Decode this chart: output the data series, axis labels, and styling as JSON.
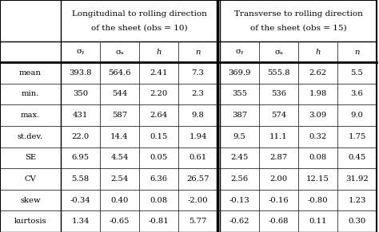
{
  "col_headers_long": [
    "Longitudinal to rolling direction",
    "of the sheet (obs = 10)"
  ],
  "col_headers_trans": [
    "Transverse to rolling direction",
    "of the sheet (obs = 15)"
  ],
  "row_labels": [
    "mean",
    "min.",
    "max.",
    "st.dev.",
    "SE",
    "CV",
    "skew",
    "kurtosis"
  ],
  "data": [
    [
      "393.8",
      "564.6",
      "2.41",
      "7.3",
      "369.9",
      "555.8",
      "2.62",
      "5.5"
    ],
    [
      "350",
      "544",
      "2.20",
      "2.3",
      "355",
      "536",
      "1.98",
      "3.6"
    ],
    [
      "431",
      "587",
      "2.64",
      "9.8",
      "387",
      "574",
      "3.09",
      "9.0"
    ],
    [
      "22.0",
      "14.4",
      "0.15",
      "1.94",
      "9.5",
      "11.1",
      "0.32",
      "1.75"
    ],
    [
      "6.95",
      "4.54",
      "0.05",
      "0.61",
      "2.45",
      "2.87",
      "0.08",
      "0.45"
    ],
    [
      "5.58",
      "2.54",
      "6.36",
      "26.57",
      "2.56",
      "2.00",
      "12.15",
      "31.92"
    ],
    [
      "-0.34",
      "0.40",
      "0.08",
      "-2.00",
      "-0.13",
      "-0.16",
      "-0.80",
      "1.23"
    ],
    [
      "1.34",
      "-0.65",
      "-0.81",
      "5.77",
      "-0.62",
      "-0.68",
      "0.11",
      "0.30"
    ]
  ],
  "sigma_y": "σᵧ",
  "sigma_u": "σᵤ",
  "bg_color": "#ffffff",
  "text_color": "#000000",
  "fontsize": 7.2,
  "header_fontsize": 7.5
}
